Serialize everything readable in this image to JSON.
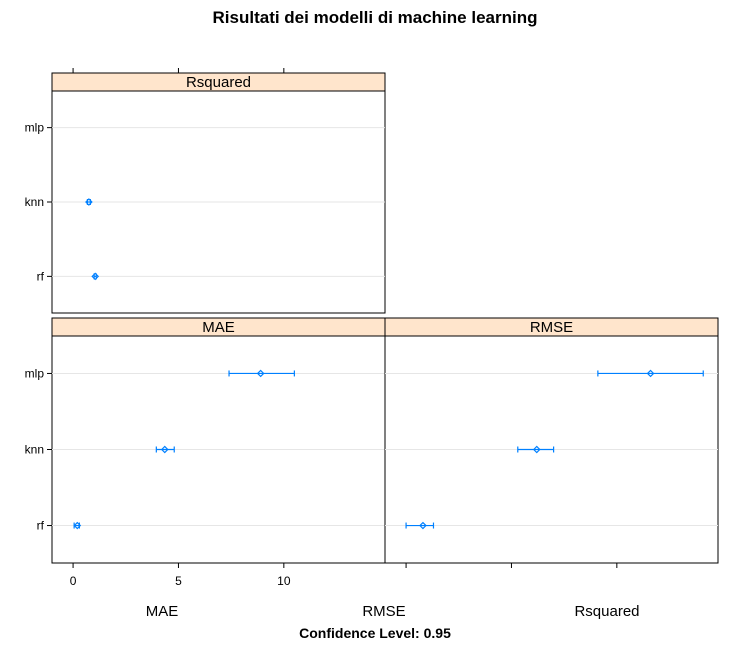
{
  "chart_data": {
    "type": "scatter",
    "title": "Risultati dei modelli di machine learning",
    "xlabel": "Confidence Level: 0.95",
    "models": [
      "mlp",
      "knn",
      "rf"
    ],
    "axis_labels": [
      "MAE",
      "RMSE",
      "Rsquared"
    ],
    "colors": {
      "strip": "#ffe5cc",
      "series": "#0080ff",
      "grid": "#e6e6e6"
    },
    "panels": [
      {
        "metric": "Rsquared",
        "xlim": [
          -1.0,
          14.8
        ],
        "xticks": [
          0,
          5,
          10
        ],
        "ticks_labeled": false,
        "points": [
          {
            "model": "mlp",
            "estimate": null,
            "lower": null,
            "upper": null
          },
          {
            "model": "knn",
            "estimate": 0.75,
            "lower": 0.68,
            "upper": 0.82
          },
          {
            "model": "rf",
            "estimate": 1.05,
            "lower": 1.0,
            "upper": 1.1
          }
        ]
      },
      {
        "metric": "MAE",
        "xlim": [
          -1.0,
          14.8
        ],
        "xticks": [
          0,
          5,
          10
        ],
        "ticks_labeled": true,
        "points": [
          {
            "model": "mlp",
            "estimate": 8.9,
            "lower": 7.4,
            "upper": 10.5
          },
          {
            "model": "knn",
            "estimate": 4.35,
            "lower": 3.95,
            "upper": 4.8
          },
          {
            "model": "rf",
            "estimate": 0.2,
            "lower": 0.05,
            "upper": 0.3
          }
        ]
      },
      {
        "metric": "RMSE",
        "xlim": [
          -1.0,
          14.8
        ],
        "xticks": [
          0,
          5,
          10,
          15
        ],
        "ticks_labeled": false,
        "points": [
          {
            "model": "mlp",
            "estimate": 11.6,
            "lower": 9.1,
            "upper": 14.1
          },
          {
            "model": "knn",
            "estimate": 6.2,
            "lower": 5.3,
            "upper": 7.0
          },
          {
            "model": "rf",
            "estimate": 0.8,
            "lower": 0.0,
            "upper": 1.3
          }
        ]
      }
    ]
  }
}
